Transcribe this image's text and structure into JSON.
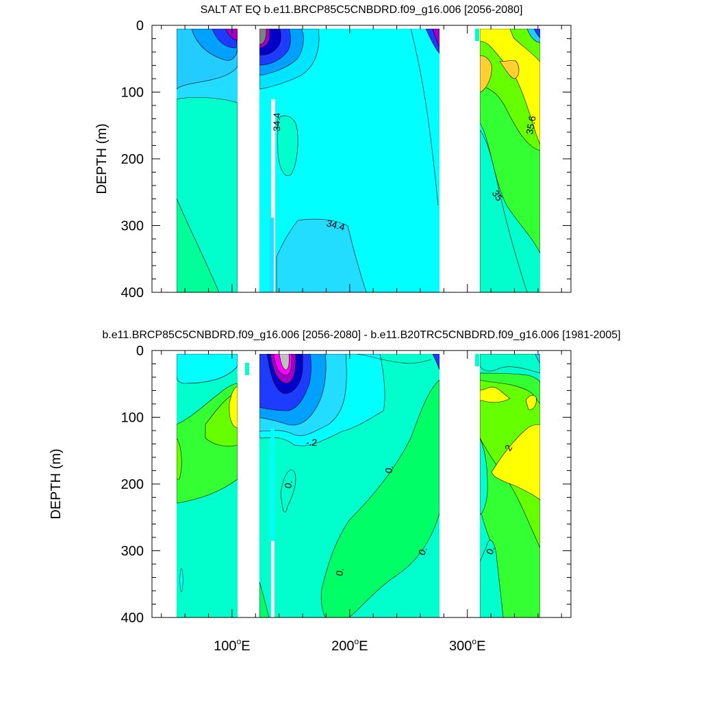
{
  "chart_data": [
    {
      "type": "heatmap",
      "title": "SALT AT EQ b.e11.BRCP85C5CNBDRD.f09_g16.006 [2056-2080]",
      "ylabel": "DEPTH (m)",
      "xlabel": "",
      "ylim": [
        0,
        400
      ],
      "y_ticks": [
        "0",
        "100",
        "200",
        "300",
        "400"
      ],
      "y_tick_values": [
        0,
        100,
        200,
        300,
        400
      ],
      "contour_labels": [
        {
          "text": "34.4",
          "lon": 131,
          "depth": 135
        },
        {
          "text": "34.4",
          "lon": 178,
          "depth": 297
        },
        {
          "text": "35.6",
          "lon": 357,
          "depth": 165
        },
        {
          "text": "35",
          "lon": 332,
          "depth": 263
        }
      ],
      "fill_colors": {
        "low_salinity": [
          "#808080",
          "#a000c8",
          "#1e3cff",
          "#00a0ff",
          "#22ccff",
          "#00e5ff"
        ],
        "mid_salinity": [
          "#00ffff",
          "#00ffcc",
          "#00ff66"
        ],
        "high_salinity": [
          "#66ff00",
          "#ffff00",
          "#ffd030"
        ]
      }
    },
    {
      "type": "heatmap",
      "title": "b.e11.BRCP85C5CNBDRD.f09_g16.006 [2056-2080] - b.e11.B20TRC5CNBDRD.f09_g16.006 [1981-2005]",
      "ylabel": "DEPTH (m)",
      "xlabel": "",
      "ylim": [
        0,
        400
      ],
      "y_ticks": [
        "0",
        "100",
        "200",
        "300",
        "400"
      ],
      "y_tick_values": [
        0,
        100,
        200,
        300,
        400
      ],
      "contour_labels": [
        {
          "text": "-.2",
          "lon": 156,
          "depth": 133
        },
        {
          "text": "0.",
          "lon": 125,
          "depth": 200
        },
        {
          "text": "0.",
          "lon": 240,
          "depth": 178
        },
        {
          "text": "0.",
          "lon": 266,
          "depth": 305
        },
        {
          "text": "0.",
          "lon": 195,
          "depth": 330
        },
        {
          "text": "2",
          "lon": 343,
          "depth": 143
        },
        {
          "text": "0.",
          "lon": 326,
          "depth": 298
        }
      ]
    }
  ],
  "x_axis": {
    "ticks": [
      {
        "value": 100,
        "label": "100"
      },
      {
        "value": 200,
        "label": "200"
      },
      {
        "value": 300,
        "label": "300"
      }
    ],
    "degree_symbol": "o",
    "unit": "E"
  }
}
